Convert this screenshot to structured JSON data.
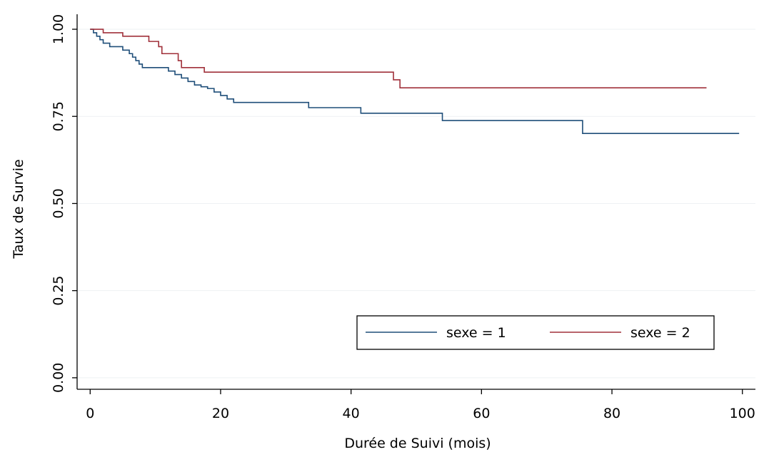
{
  "chart_data": {
    "type": "step",
    "xlabel": "Durée de Suivi (mois)",
    "ylabel": "Taux de Survie",
    "xlim": [
      -2,
      102
    ],
    "ylim": [
      -0.033,
      1.043
    ],
    "xticks": [
      0,
      20,
      40,
      60,
      80,
      100
    ],
    "yticks": [
      {
        "value": 0,
        "label": "0.00"
      },
      {
        "value": 0.25,
        "label": "0.25"
      },
      {
        "value": 0.5,
        "label": "0.50"
      },
      {
        "value": 0.75,
        "label": "0.75"
      },
      {
        "value": 1,
        "label": "1.00"
      }
    ],
    "grid": true,
    "legend": "bottom-right",
    "series": [
      {
        "name": "sexe = 1",
        "color": "#1f4e79",
        "x": [
          0,
          0.5,
          1,
          1.5,
          2,
          3,
          5,
          6,
          6.5,
          7,
          7.5,
          8,
          12,
          13,
          14,
          15,
          16,
          17,
          18,
          19,
          20,
          21,
          22,
          23,
          33.5,
          41.5,
          54,
          75.5,
          99.5
        ],
        "values": [
          1,
          0.99,
          0.98,
          0.97,
          0.96,
          0.95,
          0.94,
          0.93,
          0.92,
          0.91,
          0.9,
          0.89,
          0.88,
          0.87,
          0.86,
          0.85,
          0.84,
          0.835,
          0.83,
          0.82,
          0.81,
          0.8,
          0.79,
          0.79,
          0.775,
          0.759,
          0.738,
          0.701,
          0.701
        ]
      },
      {
        "name": "sexe = 2",
        "color": "#a0303a",
        "x": [
          0,
          2,
          5,
          9,
          10.5,
          11,
          13.5,
          14,
          17.5,
          46.5,
          47.5,
          94.5
        ],
        "values": [
          1,
          0.99,
          0.98,
          0.965,
          0.95,
          0.93,
          0.91,
          0.89,
          0.877,
          0.855,
          0.832,
          0.832
        ]
      }
    ]
  }
}
